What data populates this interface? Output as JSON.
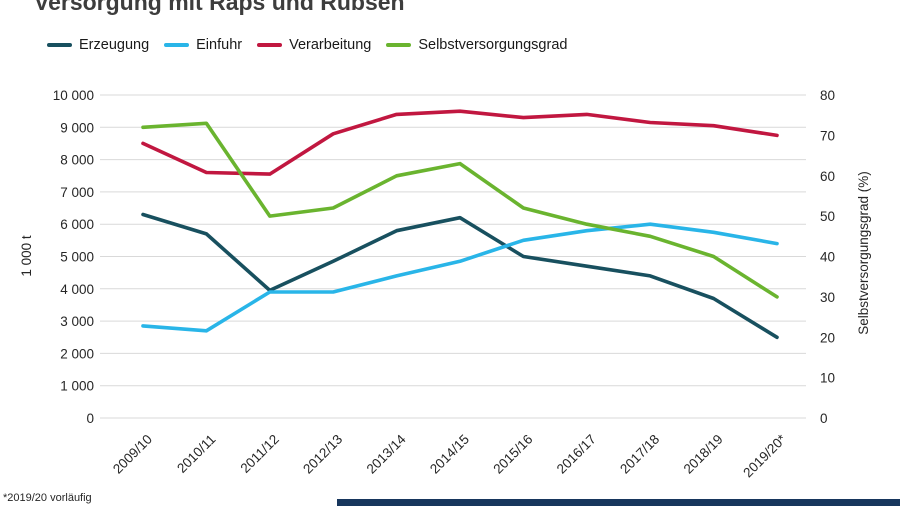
{
  "page": {
    "title": "Versorgung mit Raps und Rübsen",
    "footnote": "*2019/20 vorläufig"
  },
  "chart_data": {
    "type": "line",
    "title": "Versorgung mit Raps und Rübsen",
    "categories": [
      "2009/10",
      "2010/11",
      "2011/12",
      "2012/13",
      "2013/14",
      "2014/15",
      "2015/16",
      "2016/17",
      "2017/18",
      "2018/19",
      "2019/20*"
    ],
    "series": [
      {
        "name": "Erzeugung",
        "axis": "left",
        "color": "#18505f",
        "values": [
          6300,
          5700,
          3950,
          4850,
          5800,
          6200,
          5000,
          4700,
          4400,
          3700,
          2500
        ]
      },
      {
        "name": "Einfuhr",
        "axis": "left",
        "color": "#29b5e8",
        "values": [
          2850,
          2700,
          3900,
          3900,
          4400,
          4850,
          5500,
          5800,
          6000,
          5750,
          5400
        ]
      },
      {
        "name": "Verarbeitung",
        "axis": "left",
        "color": "#c11740",
        "values": [
          8500,
          7600,
          7550,
          8800,
          9400,
          9500,
          9300,
          9400,
          9150,
          9050,
          8750
        ]
      },
      {
        "name": "Selbstversorgungsgrad",
        "axis": "right",
        "color": "#6ab42f",
        "values": [
          72,
          73,
          50,
          52,
          60,
          63,
          52,
          48,
          45,
          40,
          30
        ]
      }
    ],
    "left_axis": {
      "label": "1 000 t",
      "min": 0,
      "max": 10000,
      "step": 1000,
      "tick_labels": [
        "0",
        "1 000",
        "2 000",
        "3 000",
        "4 000",
        "5 000",
        "6 000",
        "7 000",
        "8 000",
        "9 000",
        "10 000"
      ]
    },
    "right_axis": {
      "label": "Selbstversorgungsgrad (%)",
      "min": 0,
      "max": 80,
      "step": 10,
      "tick_labels": [
        "0",
        "10",
        "20",
        "30",
        "40",
        "50",
        "60",
        "70",
        "80"
      ]
    },
    "grid": "horizontal",
    "legend_position": "top-left",
    "footnote": "*2019/20 vorläufig"
  }
}
